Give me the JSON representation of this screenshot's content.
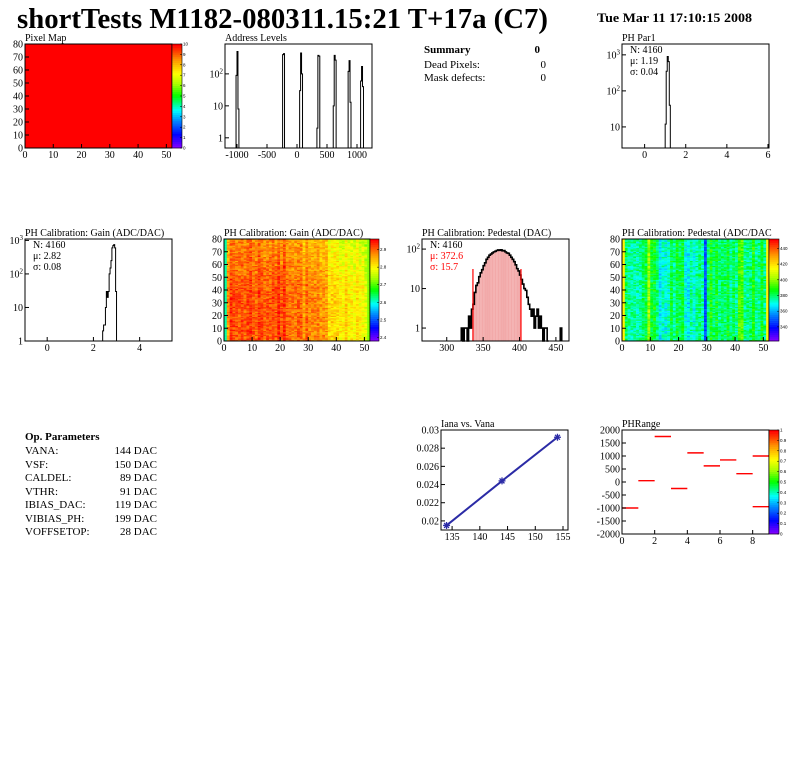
{
  "header": {
    "title": "shortTests M1182-080311.15:21 T+17a (C7)",
    "date": "Tue Mar 11 17:10:15 2008"
  },
  "summary": {
    "heading": "Summary",
    "total": "0",
    "rows": [
      {
        "label": "Dead Pixels:",
        "value": "0"
      },
      {
        "label": "Mask defects:",
        "value": "0"
      }
    ]
  },
  "op_parameters": {
    "heading": "Op. Parameters",
    "rows": [
      {
        "label": "VANA:",
        "value": "144 DAC"
      },
      {
        "label": "VSF:",
        "value": "150 DAC"
      },
      {
        "label": "CALDEL:",
        "value": "89 DAC"
      },
      {
        "label": "VTHR:",
        "value": "91 DAC"
      },
      {
        "label": "IBIAS_DAC:",
        "value": "119 DAC"
      },
      {
        "label": "VIBIAS_PH:",
        "value": "199 DAC"
      },
      {
        "label": "VOFFSETOP:",
        "value": "28 DAC"
      }
    ]
  },
  "colors": {
    "line": "#000000",
    "fit": "#ff0000",
    "graph": "#2b2ba6",
    "frame": "#000000"
  },
  "chart_data": [
    {
      "id": "pixel_map",
      "type": "heatmap",
      "title": "Pixel Map",
      "xlim": [
        0,
        52
      ],
      "ylim": [
        0,
        80
      ],
      "zlim": [
        0,
        10
      ],
      "uniform_value": 10,
      "x_ticks": [
        0,
        10,
        20,
        30,
        40,
        50
      ],
      "y_ticks": [
        0,
        10,
        20,
        30,
        40,
        50,
        60,
        70,
        80
      ],
      "z_ticks": [
        0,
        1,
        2,
        3,
        4,
        5,
        6,
        7,
        8,
        9,
        10
      ]
    },
    {
      "id": "address_levels",
      "type": "bar",
      "title": "Address Levels",
      "log_y": true,
      "xlim": [
        -1200,
        1250
      ],
      "ylim": [
        0.48,
        860
      ],
      "bin_width": 16,
      "x_ticks": [
        -1000,
        -500,
        0,
        500,
        1000
      ],
      "y_ticks": [
        1,
        10,
        100
      ],
      "y_tick_labels": [
        "1",
        "10",
        "10^2"
      ],
      "bins": [
        [
          -1016,
          90
        ],
        [
          -1000,
          500
        ],
        [
          -984,
          8
        ],
        [
          -240,
          400
        ],
        [
          -224,
          430
        ],
        [
          44,
          30
        ],
        [
          60,
          450
        ],
        [
          76,
          100
        ],
        [
          332,
          2
        ],
        [
          348,
          380
        ],
        [
          364,
          360
        ],
        [
          604,
          10
        ],
        [
          620,
          380
        ],
        [
          636,
          270
        ],
        [
          852,
          120
        ],
        [
          868,
          260
        ],
        [
          884,
          13
        ],
        [
          1060,
          60
        ],
        [
          1076,
          170
        ],
        [
          1092,
          40
        ]
      ]
    },
    {
      "id": "ph_par1",
      "type": "bar",
      "title": "PH Par1",
      "log_y": true,
      "xlim": [
        -1.1,
        6.05
      ],
      "ylim": [
        2.6,
        2000
      ],
      "bin_width": 0.05,
      "x_ticks": [
        0,
        2,
        4,
        6
      ],
      "y_ticks": [
        10,
        100,
        1000
      ],
      "y_tick_labels": [
        "10",
        "10^2",
        "10^3"
      ],
      "bins": [
        [
          1.0,
          12
        ],
        [
          1.05,
          350
        ],
        [
          1.1,
          900
        ],
        [
          1.15,
          650
        ],
        [
          1.2,
          40
        ]
      ],
      "stats": [
        {
          "text": "N: 4160"
        },
        {
          "text": "μ: 1.19"
        },
        {
          "text": "σ: 0.04"
        }
      ]
    },
    {
      "id": "gain_hist",
      "type": "bar",
      "title": "PH Calibration: Gain (ADC/DAC)",
      "log_y": true,
      "xlim": [
        -0.96,
        5.4
      ],
      "ylim": [
        1,
        1100
      ],
      "bin_width": 0.04,
      "x_ticks": [
        0,
        2,
        4
      ],
      "y_ticks": [
        1,
        10,
        100,
        1000
      ],
      "y_tick_labels": [
        "1",
        "10",
        "10^2",
        "10^3"
      ],
      "bins": [
        [
          2.4,
          2
        ],
        [
          2.44,
          3
        ],
        [
          2.48,
          3
        ],
        [
          2.52,
          10
        ],
        [
          2.56,
          30
        ],
        [
          2.6,
          20
        ],
        [
          2.64,
          30
        ],
        [
          2.68,
          100
        ],
        [
          2.72,
          150
        ],
        [
          2.76,
          250
        ],
        [
          2.8,
          600
        ],
        [
          2.84,
          700
        ],
        [
          2.88,
          750
        ],
        [
          2.92,
          600
        ],
        [
          2.96,
          30
        ]
      ],
      "stats": [
        {
          "text": "N: 4160"
        },
        {
          "text": "μ: 2.82"
        },
        {
          "text": "σ: 0.08"
        }
      ]
    },
    {
      "id": "gain_map",
      "type": "heatmap",
      "title": "PH Calibration: Gain (ADC/DAC)",
      "xlim": [
        0,
        52
      ],
      "ylim": [
        0,
        80
      ],
      "zlim": [
        2.38,
        2.96
      ],
      "x_ticks": [
        0,
        10,
        20,
        30,
        40,
        50
      ],
      "y_ticks": [
        0,
        10,
        20,
        30,
        40,
        50,
        60,
        70,
        80
      ],
      "z_ticks": [
        2.4,
        2.5,
        2.6,
        2.7,
        2.8,
        2.9
      ]
    },
    {
      "id": "pedestal_hist",
      "type": "bar",
      "title": "PH Calibration: Pedestal (DAC)",
      "log_y": true,
      "xlim": [
        266,
        468
      ],
      "ylim": [
        0.47,
        180
      ],
      "bin_width": 2,
      "x_ticks": [
        300,
        350,
        400,
        450
      ],
      "y_ticks": [
        1,
        10,
        100
      ],
      "y_tick_labels": [
        "1",
        "10",
        "10^2"
      ],
      "fit_range": [
        336,
        402
      ],
      "bins": [
        [
          320,
          1
        ],
        [
          322,
          0
        ],
        [
          324,
          1
        ],
        [
          326,
          1
        ],
        [
          328,
          0
        ],
        [
          330,
          2
        ],
        [
          332,
          1
        ],
        [
          334,
          3
        ],
        [
          336,
          4
        ],
        [
          338,
          8
        ],
        [
          340,
          12
        ],
        [
          342,
          14
        ],
        [
          344,
          20
        ],
        [
          346,
          25
        ],
        [
          348,
          30
        ],
        [
          350,
          38
        ],
        [
          352,
          45
        ],
        [
          354,
          55
        ],
        [
          356,
          62
        ],
        [
          358,
          70
        ],
        [
          360,
          75
        ],
        [
          362,
          80
        ],
        [
          364,
          85
        ],
        [
          366,
          88
        ],
        [
          368,
          92
        ],
        [
          370,
          95
        ],
        [
          372,
          93
        ],
        [
          374,
          96
        ],
        [
          376,
          90
        ],
        [
          378,
          92
        ],
        [
          380,
          85
        ],
        [
          382,
          80
        ],
        [
          384,
          78
        ],
        [
          386,
          70
        ],
        [
          388,
          62
        ],
        [
          390,
          55
        ],
        [
          392,
          48
        ],
        [
          394,
          40
        ],
        [
          396,
          32
        ],
        [
          398,
          28
        ],
        [
          400,
          22
        ],
        [
          402,
          17
        ],
        [
          404,
          13
        ],
        [
          406,
          10
        ],
        [
          408,
          9
        ],
        [
          410,
          6
        ],
        [
          412,
          4
        ],
        [
          414,
          3
        ],
        [
          416,
          2
        ],
        [
          418,
          3
        ],
        [
          420,
          1
        ],
        [
          422,
          2
        ],
        [
          424,
          3
        ],
        [
          426,
          1
        ],
        [
          428,
          2
        ],
        [
          430,
          1
        ],
        [
          432,
          0
        ],
        [
          434,
          1
        ],
        [
          436,
          1
        ],
        [
          438,
          0
        ],
        [
          456,
          1
        ]
      ],
      "stats": [
        {
          "text": "N: 4160",
          "color": "#000000"
        },
        {
          "text": "μ: 372.6",
          "color": "#ff0000"
        },
        {
          "text": "σ: 15.7",
          "color": "#ff0000"
        }
      ]
    },
    {
      "id": "pedestal_map",
      "type": "heatmap",
      "title": "PH Calibration: Pedestal (ADC/DAC",
      "xlim": [
        0,
        52
      ],
      "ylim": [
        0,
        80
      ],
      "zlim": [
        322,
        452
      ],
      "x_ticks": [
        0,
        10,
        20,
        30,
        40,
        50
      ],
      "y_ticks": [
        0,
        10,
        20,
        30,
        40,
        50,
        60,
        70,
        80
      ],
      "z_ticks": [
        340,
        360,
        380,
        400,
        420,
        440
      ]
    },
    {
      "id": "iana_vs_vana",
      "type": "line",
      "title": "Iana vs. Vana",
      "xlim": [
        133,
        155.9
      ],
      "ylim": [
        0.019,
        0.03
      ],
      "x_ticks": [
        135,
        140,
        145,
        150,
        155
      ],
      "y_ticks": [
        0.02,
        0.022,
        0.024,
        0.026,
        0.028,
        0.03
      ],
      "points": [
        [
          134,
          0.0195
        ],
        [
          144,
          0.0244
        ],
        [
          154,
          0.0292
        ]
      ]
    },
    {
      "id": "ph_range",
      "type": "heatmap",
      "title": "PHRange",
      "xlim": [
        0,
        9
      ],
      "ylim": [
        -2000,
        2000
      ],
      "zlim": [
        0,
        1
      ],
      "x_ticks": [
        0,
        2,
        4,
        6,
        8
      ],
      "y_ticks": [
        2000,
        1500,
        1000,
        500,
        0,
        -500,
        -1000,
        -1500,
        -2000
      ],
      "z_ticks": [
        0,
        0.1,
        0.2,
        0.3,
        0.4,
        0.5,
        0.6,
        0.7,
        0.8,
        0.9,
        1
      ],
      "segments": [
        [
          0,
          -1000
        ],
        [
          1,
          50
        ],
        [
          2,
          1750
        ],
        [
          3,
          -250
        ],
        [
          4,
          1120
        ],
        [
          5,
          620
        ],
        [
          6,
          850
        ],
        [
          7,
          320
        ],
        [
          8,
          1000
        ],
        [
          8,
          -950
        ]
      ]
    }
  ]
}
